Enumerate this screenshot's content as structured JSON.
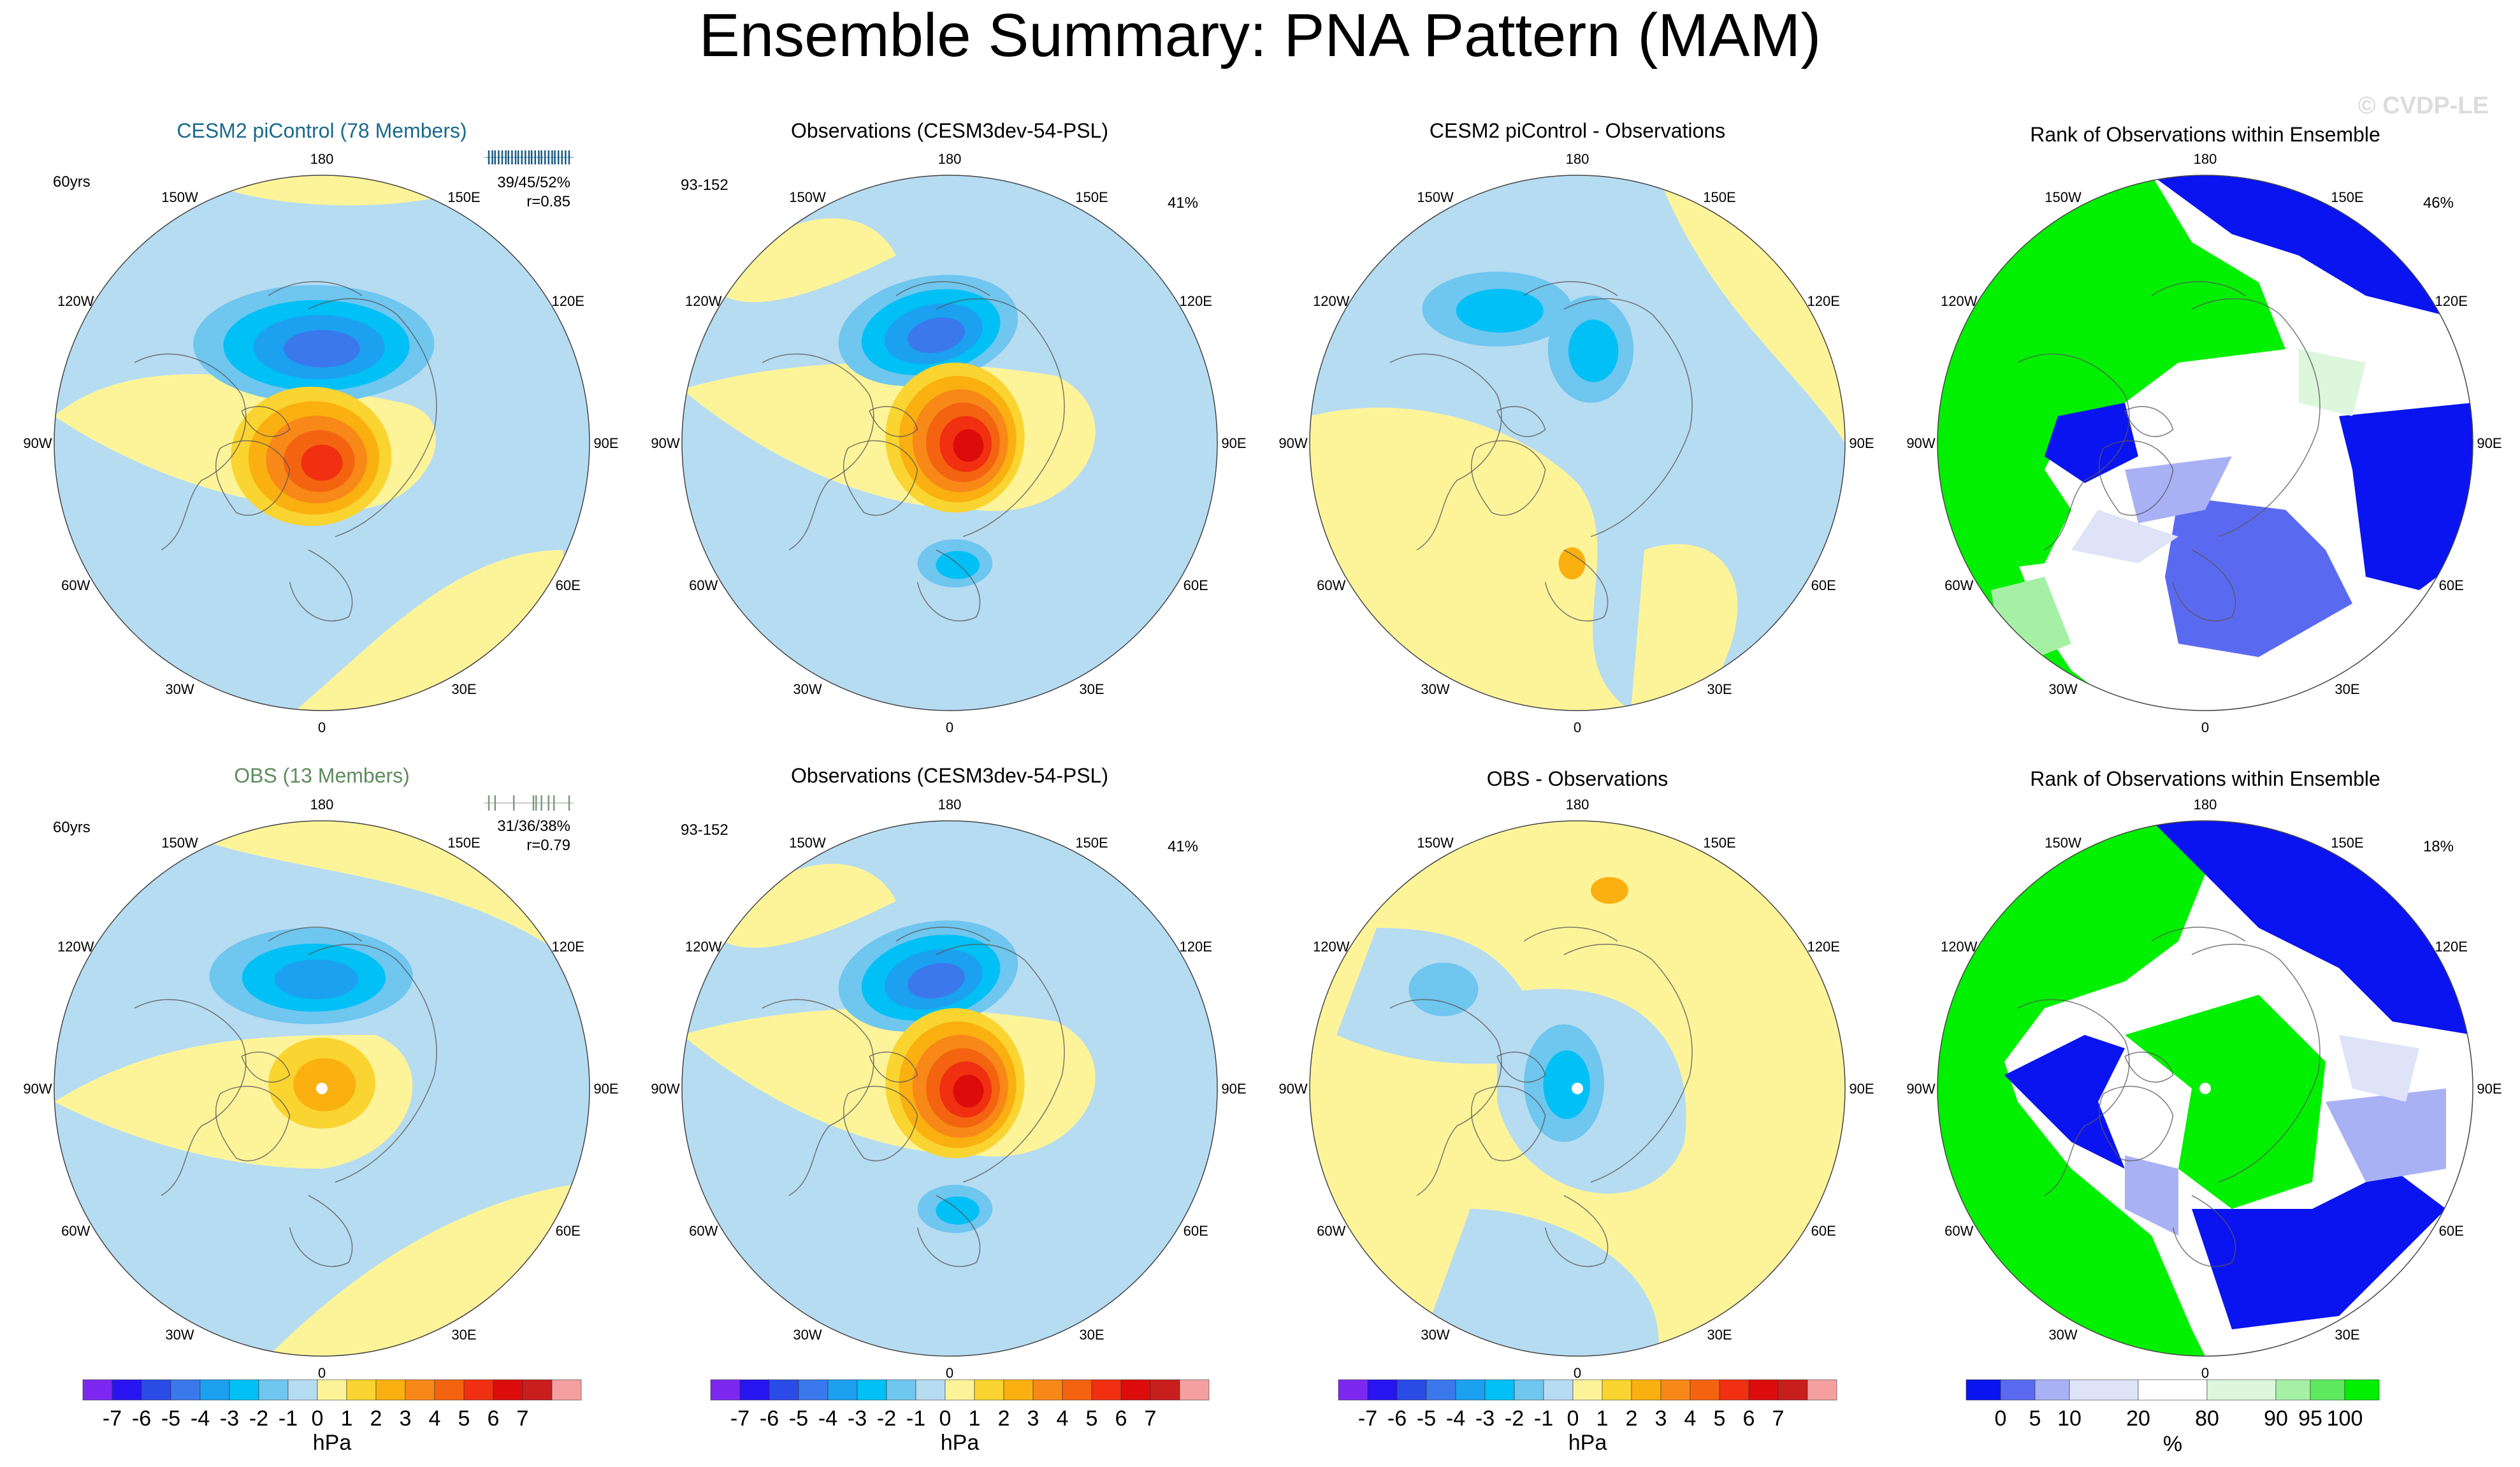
{
  "page": {
    "title": "Ensemble Summary: PNA Pattern (MAM)",
    "watermark": "© CVDP-LE"
  },
  "colors": {
    "ocean": "#b6dcf2",
    "land_pos": "#fdf49a",
    "coast": "#555555",
    "grid_label": "#000000",
    "cesm_title": "#1a6a8c",
    "obs_title": "#5e8c5e",
    "rank_colors": [
      "#0a14f0",
      "#5a6af0",
      "#a9b1f5",
      "#dfe3f8",
      "#ffffff",
      "#dcf7dc",
      "#a6f0a6",
      "#5ee85e",
      "#00f000"
    ],
    "psl_colors": [
      "#7c28f0",
      "#2814f0",
      "#2a4be6",
      "#3a78ec",
      "#1ca0f0",
      "#00c0f5",
      "#6fc6ef",
      "#b6dcf2",
      "#fdf49a",
      "#fad430",
      "#fab010",
      "#f88818",
      "#f46410",
      "#f03010",
      "#dc0c0c",
      "#c81e1e",
      "#f4a0a0"
    ]
  },
  "chart_data": {
    "type": "heatmap",
    "description_units": "hPa",
    "psl_colorbar": {
      "ticks": [
        "-7",
        "-6",
        "-5",
        "-4",
        "-3",
        "-2",
        "-1",
        "0",
        "1",
        "2",
        "3",
        "4",
        "5",
        "6",
        "7"
      ],
      "unit": "hPa"
    },
    "rank_colorbar": {
      "ticks": [
        "0",
        "5",
        "10",
        "20",
        "80",
        "90",
        "95",
        "100"
      ],
      "unit": "%"
    },
    "lon_labels": [
      "180",
      "150E",
      "120E",
      "90E",
      "60E",
      "30E",
      "0",
      "30W",
      "60W",
      "90W",
      "120W",
      "150W"
    ],
    "panels": [
      {
        "id": "cesm-ens",
        "title": "CESM2 piControl (78 Members)",
        "left_text": "60yrs",
        "stats_line1": "39/45/52%",
        "stats_line2": "r=0.85",
        "ticks": [
          0.05,
          0.09,
          0.12,
          0.16,
          0.2,
          0.24,
          0.27,
          0.31,
          0.35,
          0.38,
          0.42,
          0.46,
          0.5,
          0.53,
          0.57,
          0.61,
          0.64,
          0.68,
          0.72,
          0.76,
          0.79,
          0.83,
          0.87,
          0.91,
          0.95
        ]
      },
      {
        "id": "obs-top",
        "title": "Observations (CESM3dev-54-PSL)",
        "left_text": "93-152",
        "right_text": "41%"
      },
      {
        "id": "diff-top",
        "title": "CESM2 piControl - Observations"
      },
      {
        "id": "rank-top",
        "title": "Rank of Observations within Ensemble",
        "right_text": "46%"
      },
      {
        "id": "obs-ens",
        "title": "OBS (13 Members)",
        "left_text": "60yrs",
        "stats_line1": "31/36/38%",
        "stats_line2": "r=0.79",
        "ticks": [
          0.05,
          0.12,
          0.33,
          0.55,
          0.58,
          0.64,
          0.72,
          0.78,
          0.95
        ]
      },
      {
        "id": "obs-bottom",
        "title": "Observations (CESM3dev-54-PSL)",
        "left_text": "93-152",
        "right_text": "41%"
      },
      {
        "id": "diff-bottom",
        "title": "OBS - Observations"
      },
      {
        "id": "rank-bottom",
        "title": "Rank of Observations within Ensemble",
        "right_text": "18%"
      }
    ]
  }
}
